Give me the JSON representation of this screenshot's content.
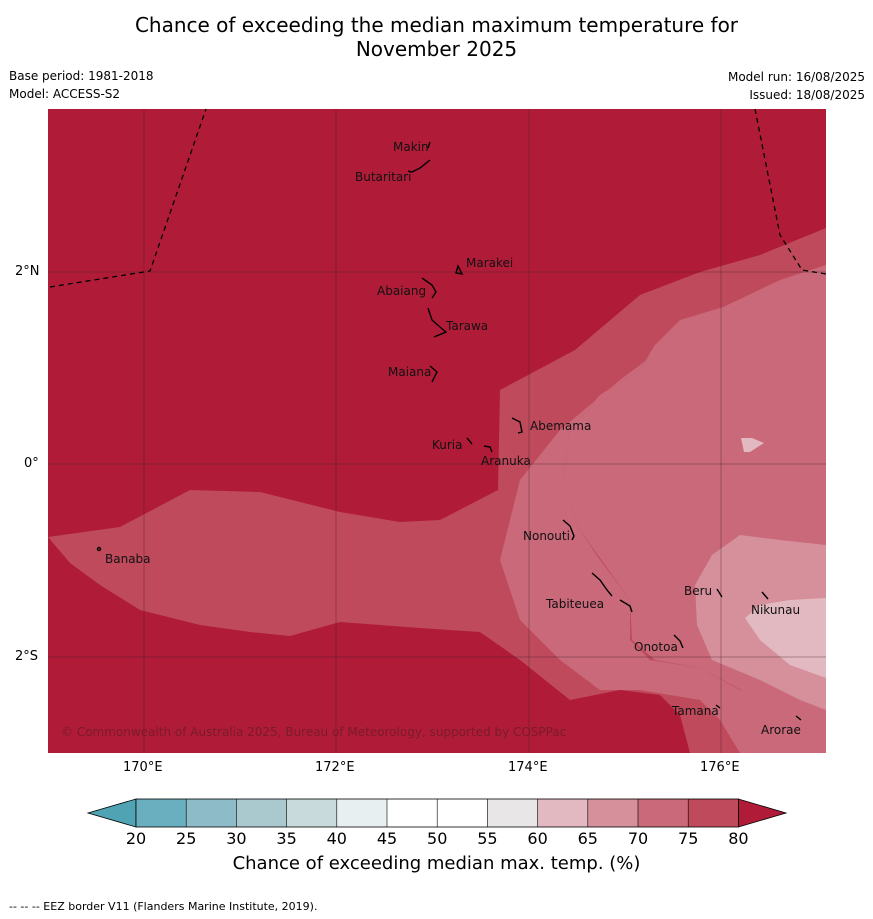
{
  "title_line1": "Chance of exceeding the median maximum temperature for",
  "title_line2": "November 2025",
  "base_period": "Base period: 1981-2018",
  "model": "Model: ACCESS-S2",
  "model_run": "Model run: 16/08/2025",
  "issued": "Issued: 18/08/2025",
  "lon_ticks": [
    "170°E",
    "172°E",
    "174°E",
    "176°E"
  ],
  "lat_ticks": [
    "2°N",
    "0°",
    "2°S"
  ],
  "places": [
    "Makin",
    "Butaritari",
    "Marakei",
    "Abaiang",
    "Tarawa",
    "Maiana",
    "Abemama",
    "Kuria",
    "Aranuka",
    "Nonouti",
    "Banaba",
    "Beru",
    "Nikunau",
    "Tabiteuea",
    "Onotoa",
    "Tamana",
    "Arorae"
  ],
  "copyright": "© Commonwealth of Australia 2025, Bureau of Meteorology, supported by COSPPac",
  "colorbar": {
    "labels": [
      "20",
      "25",
      "30",
      "35",
      "40",
      "45",
      "50",
      "55",
      "60",
      "65",
      "70",
      "75",
      "80"
    ],
    "colors": [
      "#4fa3b3",
      "#6aafbf",
      "#8dbcc8",
      "#a9c9cf",
      "#c9dadd",
      "#e8eff1",
      "#ffffff",
      "#ffffff",
      "#e8e6e6",
      "#e2b9c0",
      "#d5909b",
      "#c9697a",
      "#bf4a5c",
      "#b01c38"
    ],
    "title": "Chance of exceeding median max. temp. (%)"
  },
  "footnote": "--  --  -- EEZ border V11 (Flanders Marine Institute, 2019)."
}
